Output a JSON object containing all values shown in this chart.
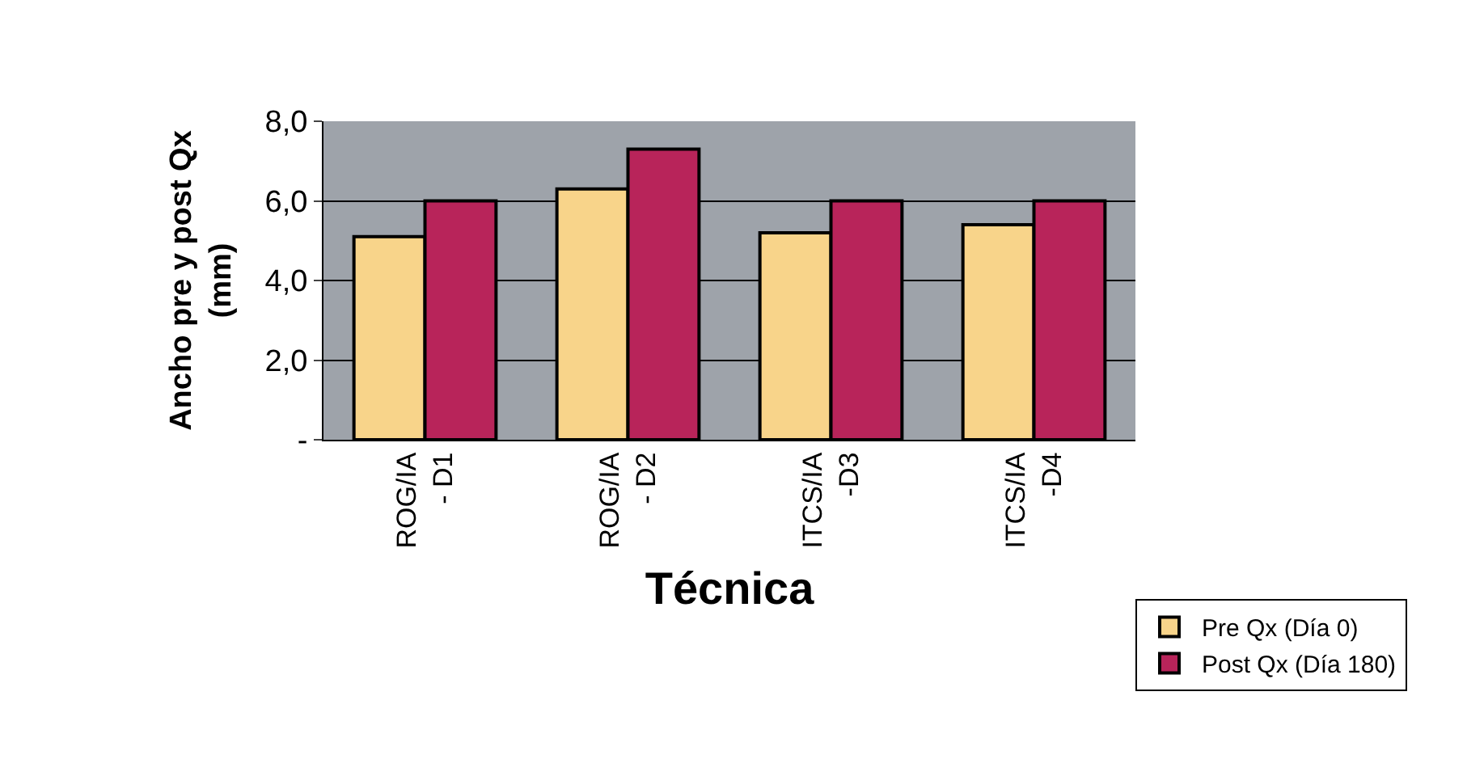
{
  "chart_data": {
    "type": "bar",
    "xlabel": "Técnica",
    "ylabel": "Ancho pre y post Qx\n(mm)",
    "categories": [
      "ROG/IA\n- D1",
      "ROG/IA\n- D2",
      "ITCS/IA\n-D3",
      "ITCS/IA\n-D4"
    ],
    "series": [
      {
        "name": "Pre Qx (Día 0)",
        "color": "#f8d48a",
        "values": [
          5.1,
          6.3,
          5.2,
          5.4
        ]
      },
      {
        "name": "Post Qx (Día 180)",
        "color": "#b8245a",
        "values": [
          6.0,
          7.3,
          6.0,
          6.0
        ]
      }
    ],
    "ylim": [
      0,
      8
    ],
    "yticks": [
      {
        "value": 0,
        "label": "-"
      },
      {
        "value": 2,
        "label": "2,0"
      },
      {
        "value": 4,
        "label": "4,0"
      },
      {
        "value": 6,
        "label": "6,0"
      },
      {
        "value": 8,
        "label": "8,0"
      }
    ],
    "grid": "y",
    "legend": "bottom right"
  }
}
